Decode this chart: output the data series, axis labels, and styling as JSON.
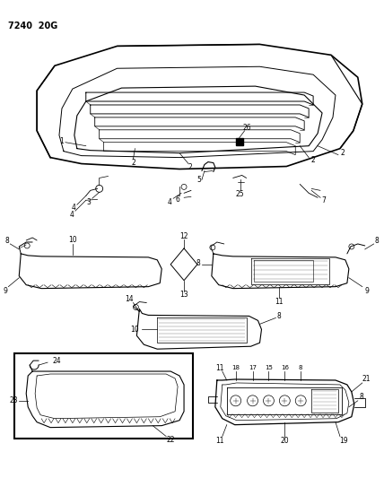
{
  "title": "7240 20G",
  "bg_color": "#ffffff",
  "line_color": "#000000",
  "fig_width": 4.28,
  "fig_height": 5.33,
  "dpi": 100
}
